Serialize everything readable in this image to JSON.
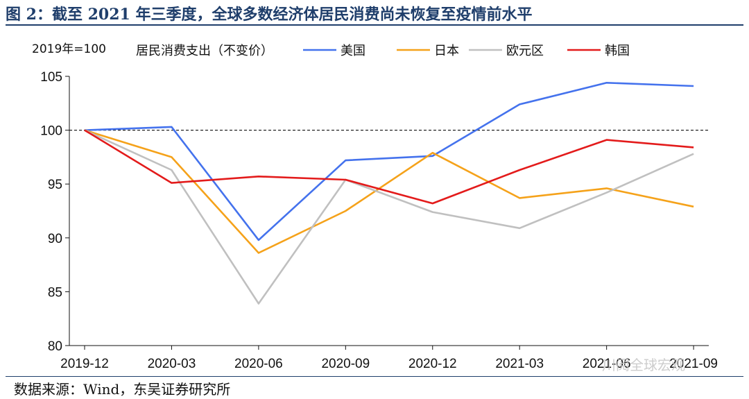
{
  "header": {
    "title": "图 2：截至 2021 年三季度，全球多数经济体居民消费尚未恢复至疫情前水平"
  },
  "footer": {
    "source": "数据来源：Wind，东吴证券研究所"
  },
  "watermark": "川阅全球宏观",
  "chart_data": {
    "type": "line",
    "unit_note": "2019年=100",
    "legend_title": "居民消费支出（不变价）",
    "legend_placement": "top",
    "categories": [
      "2019-12",
      "2020-03",
      "2020-06",
      "2020-09",
      "2020-12",
      "2021-03",
      "2021-06",
      "2021-09"
    ],
    "x_tick_labels": [
      "2019-12",
      "2020-03",
      "2020-06",
      "2020-09",
      "2020-12",
      "2021-03",
      "2021-06",
      "2021-09"
    ],
    "ylim": [
      80,
      105
    ],
    "yticks": [
      80,
      85,
      90,
      95,
      100,
      105
    ],
    "reference_line": 100,
    "grid": false,
    "series": [
      {
        "name": "美国",
        "color": "#4472ed",
        "values": [
          100,
          100.3,
          89.8,
          97.2,
          97.6,
          102.4,
          104.4,
          104.1
        ]
      },
      {
        "name": "日本",
        "color": "#f5a21a",
        "values": [
          100,
          97.5,
          88.6,
          92.5,
          97.9,
          93.7,
          94.6,
          92.9
        ]
      },
      {
        "name": "欧元区",
        "color": "#c0c0c0",
        "values": [
          100,
          96.3,
          83.9,
          95.4,
          92.4,
          90.9,
          94.2,
          97.8
        ]
      },
      {
        "name": "韩国",
        "color": "#e31b1b",
        "values": [
          100,
          95.1,
          95.7,
          95.4,
          93.2,
          96.3,
          99.1,
          98.4
        ]
      }
    ]
  }
}
